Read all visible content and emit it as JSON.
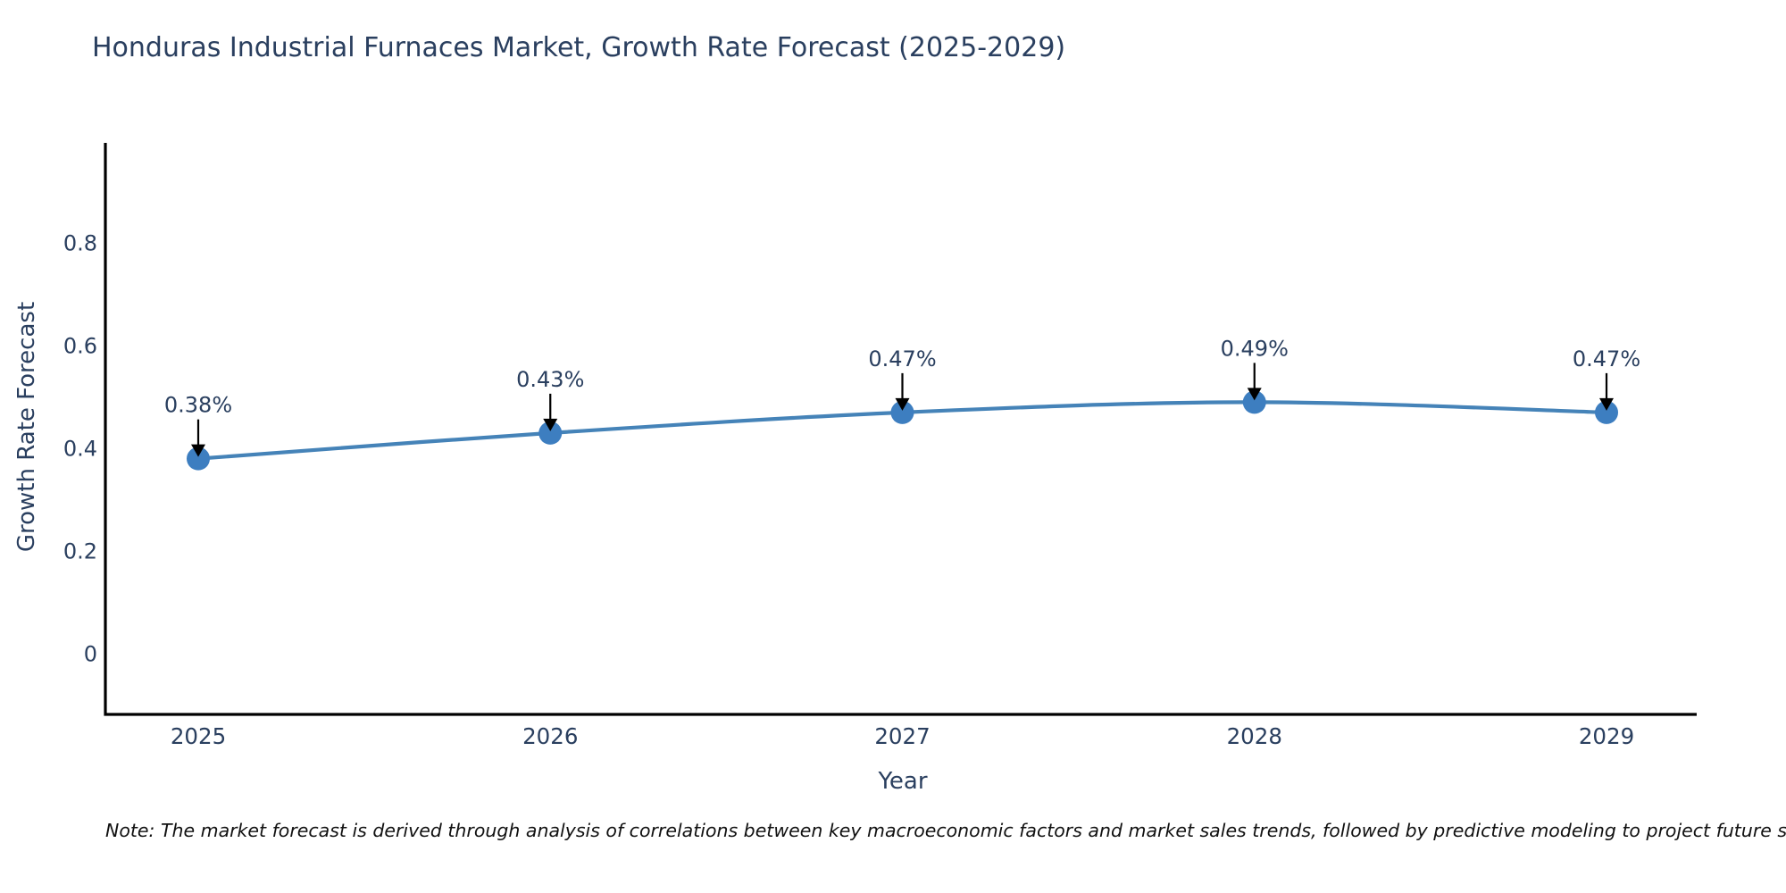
{
  "title": "Honduras Industrial Furnaces Market, Growth Rate Forecast (2025-2029)",
  "note": "Note: The market forecast is derived through analysis of correlations between key macroeconomic factors and market sales trends, followed by predictive modeling to project future sales",
  "chart_data": {
    "type": "line",
    "title": "Honduras Industrial Furnaces Market, Growth Rate Forecast (2025-2029)",
    "x": [
      2025,
      2026,
      2027,
      2028,
      2029
    ],
    "values": [
      0.38,
      0.43,
      0.47,
      0.49,
      0.47
    ],
    "point_labels": [
      "0.38%",
      "0.43%",
      "0.47%",
      "0.49%",
      "0.47%"
    ],
    "xlabel": "Year",
    "ylabel": "Growth Rate Forecast",
    "xticklabels": [
      "2025",
      "2026",
      "2027",
      "2028",
      "2029"
    ],
    "yticks": [
      0,
      0.2,
      0.4,
      0.6,
      0.8
    ],
    "yticklabels": [
      "0",
      "0.2",
      "0.4",
      "0.6",
      "0.8"
    ],
    "ylim": [
      -0.118,
      0.995
    ],
    "grid": false,
    "legend": "none",
    "colors": {
      "line": "#4583b8",
      "marker": "#3d7ec0",
      "axis": "#000000",
      "text": "#2a3f5f",
      "annotation_arrow": "#000000"
    }
  }
}
